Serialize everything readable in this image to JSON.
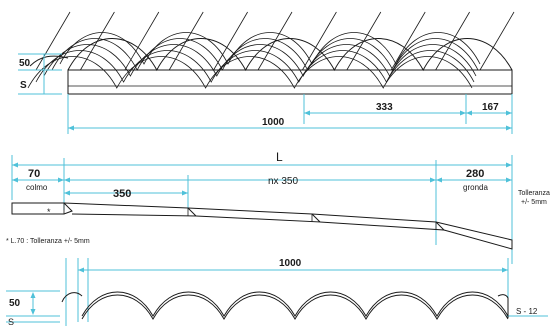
{
  "top_view": {
    "height_label": "50",
    "thickness_label": "S",
    "total_width_label": "1000",
    "mid_width_label": "333",
    "end_width_label": "167"
  },
  "side_view": {
    "overall_length_label": "L",
    "left_overhang_label": "70",
    "left_overhang_caption": "colmo",
    "first_step_label": "350",
    "repeat_step_label": "nx 350",
    "right_overhang_label": "280",
    "right_overhang_caption": "gronda",
    "tolerance_line1": "Tolleranza",
    "tolerance_line2": "+/- 5mm",
    "star_mark": "*",
    "footnote": "* L.70 : Tolleranza +/- 5mm"
  },
  "section_view": {
    "width_label": "1000",
    "height_label": "50",
    "thickness_label": "S",
    "thickness_range_label": "S - 12"
  }
}
